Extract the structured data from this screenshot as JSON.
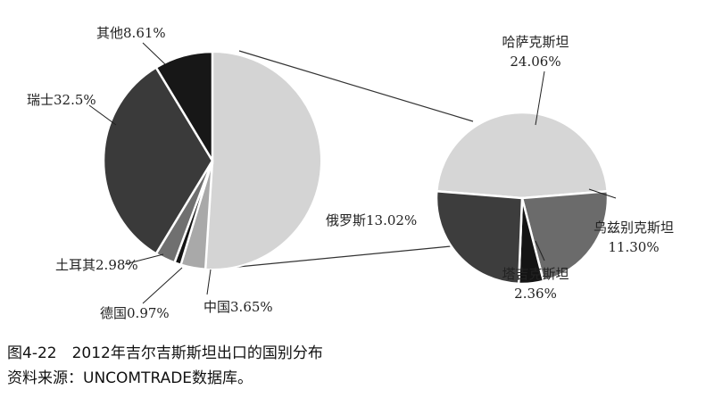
{
  "chart_data": {
    "type": "pie",
    "categories": [
      "中国",
      "德国",
      "土耳其",
      "瑞士",
      "其他"
    ],
    "values": [
      3.65,
      0.97,
      2.98,
      32.5,
      8.61
    ],
    "value_labels": [
      "3.65%",
      "0.97%",
      "2.98%",
      "32.5%",
      "8.61%"
    ],
    "colors": [
      "#a9a9a9",
      "#141414",
      "#707070",
      "#3a3a3a",
      "#171717"
    ],
    "detail": {
      "categories": [
        "哈萨克斯坦",
        "乌兹别克斯坦",
        "塔吉克斯坦",
        "俄罗斯"
      ],
      "values": [
        24.06,
        11.3,
        2.36,
        13.02
      ],
      "value_labels": [
        "24.06%",
        "11.30%",
        "2.36%",
        "13.02%"
      ],
      "colors": [
        "#d6d6d6",
        "#6b6b6b",
        "#141414",
        "#3d3d3d"
      ]
    },
    "caption": [
      "图4-22　2012年吉尔吉斯斯坦出口的国别分布",
      "资料来源：UNCOMTRADE数据库。"
    ]
  }
}
